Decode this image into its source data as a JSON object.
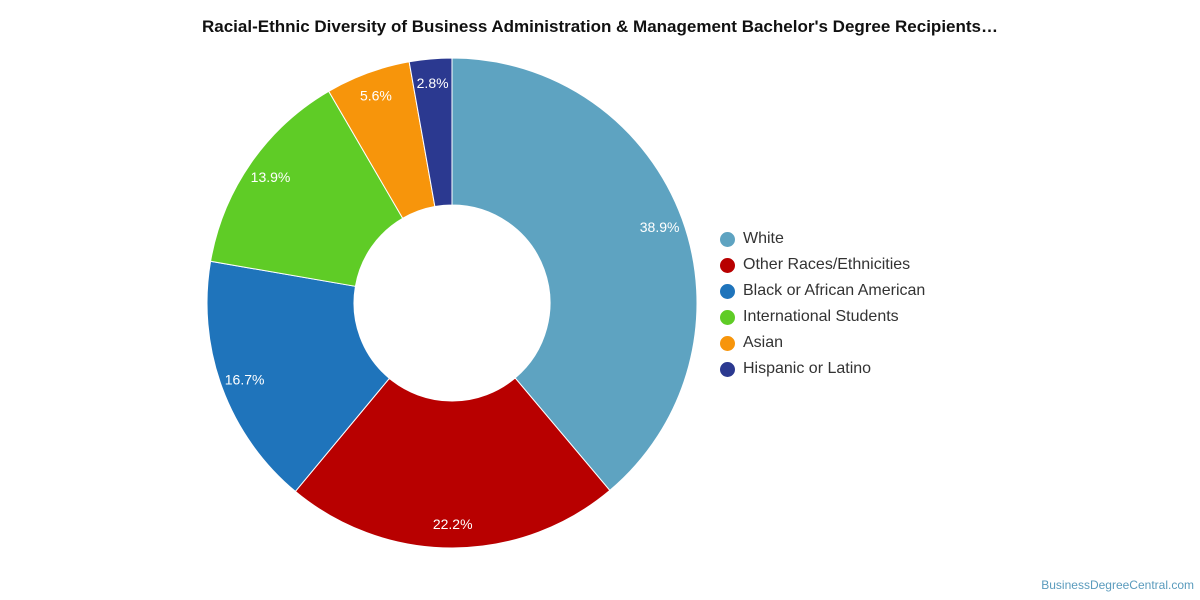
{
  "chart_data": {
    "type": "pie",
    "title": "Racial-Ethnic Diversity of Business Administration & Management Bachelor's Degree Recipients…",
    "categories": [
      "White",
      "Other Races/Ethnicities",
      "Black or African American",
      "International Students",
      "Asian",
      "Hispanic or Latino"
    ],
    "values": [
      38.9,
      22.2,
      16.7,
      13.9,
      5.6,
      2.8
    ],
    "labels": [
      "38.9%",
      "22.2%",
      "16.7%",
      "13.9%",
      "5.6%",
      "2.8%"
    ],
    "colors": [
      "#5ea3c1",
      "#b80000",
      "#1f74bb",
      "#5fcc26",
      "#f7950b",
      "#2b3990"
    ],
    "donut": true,
    "legend_position": "right"
  },
  "credit": "BusinessDegreeCentral.com"
}
